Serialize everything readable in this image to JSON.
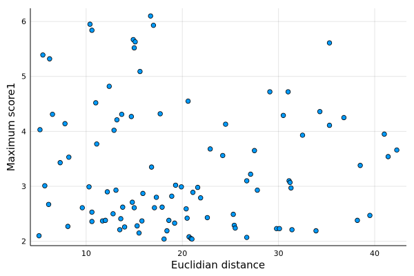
{
  "chart_data": {
    "type": "scatter",
    "title": "",
    "xlabel": "Euclidian distance",
    "ylabel": "Maximum score1",
    "xlim": [
      4.2,
      43.3
    ],
    "ylim": [
      1.92,
      6.24
    ],
    "xticks": [
      10,
      20,
      30,
      40
    ],
    "yticks": [
      2,
      3,
      4,
      5,
      6
    ],
    "grid": true,
    "legend": "none",
    "marker_color": "#009af9",
    "x": [
      5.1,
      5.2,
      5.5,
      5.7,
      6.1,
      6.2,
      6.5,
      7.3,
      7.8,
      8.1,
      8.2,
      9.6,
      10.3,
      10.4,
      10.6,
      10.6,
      10.6,
      11.0,
      11.1,
      11.7,
      12.0,
      12.2,
      12.4,
      12.8,
      12.9,
      13.1,
      13.2,
      13.5,
      13.6,
      13.7,
      13.8,
      14.0,
      14.7,
      14.8,
      14.9,
      15.0,
      15.0,
      15.1,
      15.3,
      15.5,
      15.6,
      15.8,
      15.9,
      16.7,
      16.8,
      17.0,
      17.1,
      17.3,
      17.7,
      17.9,
      18.1,
      18.4,
      18.6,
      18.9,
      19.2,
      19.3,
      19.9,
      20.4,
      20.5,
      20.6,
      20.7,
      20.9,
      21.0,
      21.1,
      21.6,
      21.9,
      22.6,
      22.9,
      24.2,
      24.5,
      25.3,
      25.4,
      25.5,
      26.7,
      26.7,
      27.1,
      27.5,
      27.8,
      29.1,
      29.8,
      30.1,
      30.5,
      31.0,
      31.1,
      31.2,
      31.3,
      31.4,
      32.5,
      33.9,
      34.3,
      35.3,
      35.3,
      36.8,
      38.2,
      38.5,
      39.5,
      41.0,
      41.4,
      42.3
    ],
    "y": [
      2.1,
      4.03,
      5.39,
      3.01,
      2.67,
      5.32,
      4.31,
      3.43,
      4.14,
      2.27,
      3.53,
      2.61,
      2.99,
      5.95,
      2.53,
      2.36,
      5.84,
      4.52,
      3.77,
      2.37,
      2.38,
      2.9,
      4.82,
      2.5,
      4.02,
      2.93,
      4.21,
      2.21,
      2.41,
      4.31,
      2.62,
      2.26,
      4.27,
      2.71,
      5.67,
      5.52,
      2.61,
      5.63,
      2.28,
      2.15,
      5.09,
      2.37,
      2.87,
      6.1,
      3.35,
      5.93,
      2.61,
      2.8,
      4.32,
      2.62,
      2.04,
      2.19,
      2.38,
      2.82,
      2.33,
      3.02,
      2.99,
      2.59,
      2.42,
      4.55,
      2.08,
      2.05,
      2.04,
      2.89,
      2.98,
      2.79,
      2.43,
      3.68,
      3.56,
      4.13,
      2.49,
      2.29,
      2.24,
      3.1,
      2.07,
      3.22,
      3.65,
      2.93,
      4.72,
      2.23,
      2.23,
      4.29,
      4.72,
      3.1,
      3.07,
      2.97,
      2.21,
      3.93,
      2.19,
      4.36,
      5.61,
      4.11,
      4.25,
      2.38,
      3.38,
      2.47,
      3.95,
      3.54,
      3.66
    ]
  }
}
